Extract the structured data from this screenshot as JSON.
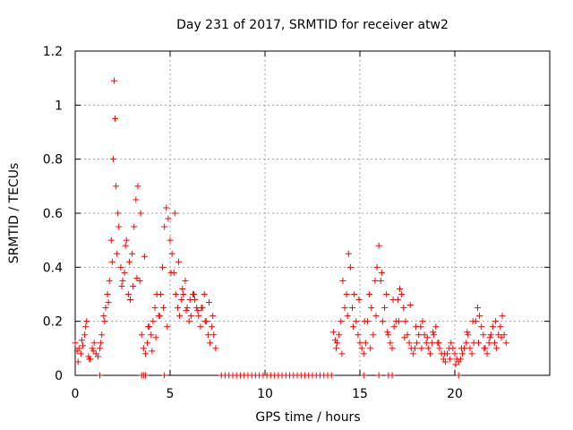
{
  "chart_data": {
    "type": "scatter",
    "title": "Day 231 of 2017, SRMTID for receiver atw2",
    "xlabel": "GPS time / hours",
    "ylabel": "SRMTID / TECUs",
    "xlim": [
      0,
      25
    ],
    "ylim": [
      0,
      1.2
    ],
    "xticks": [
      0,
      5,
      10,
      15,
      20
    ],
    "xtick_labels": [
      "0",
      "5",
      "10",
      "15",
      "20"
    ],
    "yticks": [
      0,
      0.2,
      0.4,
      0.6,
      0.8,
      1,
      1.2
    ],
    "ytick_labels": [
      "0",
      "0.2",
      "0.4",
      "0.6",
      "0.8",
      "1",
      "1.2"
    ],
    "grid": true,
    "marker": "plus",
    "color": "#ff0000",
    "series": [
      {
        "name": "SRMTID",
        "x": [
          0.0,
          0.1,
          0.2,
          0.3,
          0.4,
          0.5,
          0.6,
          0.7,
          0.8,
          0.9,
          1.0,
          1.1,
          1.2,
          1.3,
          1.4,
          1.5,
          1.6,
          1.7,
          1.8,
          1.9,
          2.0,
          2.05,
          2.1,
          2.15,
          2.2,
          2.3,
          2.4,
          2.5,
          2.6,
          2.7,
          2.8,
          2.9,
          3.0,
          3.1,
          3.2,
          3.3,
          3.4,
          3.5,
          3.6,
          3.7,
          3.8,
          3.9,
          4.0,
          4.1,
          4.2,
          4.3,
          4.4,
          4.5,
          4.6,
          4.7,
          4.8,
          4.9,
          5.0,
          5.1,
          5.2,
          5.3,
          5.4,
          5.5,
          5.6,
          5.7,
          5.8,
          5.9,
          6.0,
          6.1,
          6.2,
          6.3,
          6.4,
          6.5,
          6.6,
          6.7,
          6.8,
          6.9,
          7.0,
          7.1,
          7.2,
          7.3,
          7.4,
          0.15,
          0.35,
          0.55,
          0.75,
          0.95,
          1.35,
          1.55,
          1.75,
          1.95,
          2.25,
          2.45,
          2.65,
          2.85,
          3.05,
          3.25,
          3.45,
          3.65,
          3.85,
          4.05,
          4.25,
          4.45,
          4.65,
          4.85,
          5.05,
          5.25,
          5.45,
          5.65,
          5.85,
          6.05,
          6.25,
          6.45,
          6.65,
          6.85,
          7.05,
          7.25,
          13.6,
          13.7,
          13.8,
          13.9,
          14.0,
          14.1,
          14.2,
          14.3,
          14.4,
          14.5,
          14.6,
          14.7,
          14.8,
          14.9,
          15.0,
          15.1,
          15.2,
          15.3,
          15.4,
          15.5,
          15.6,
          15.7,
          15.8,
          15.9,
          16.0,
          16.1,
          16.2,
          16.3,
          16.4,
          16.5,
          16.6,
          16.7,
          16.8,
          16.9,
          17.0,
          17.1,
          17.2,
          17.3,
          17.4,
          17.5,
          17.6,
          17.7,
          17.8,
          17.9,
          18.0,
          18.1,
          18.2,
          18.3,
          18.4,
          18.5,
          18.6,
          18.7,
          18.8,
          18.9,
          19.0,
          19.1,
          19.2,
          19.3,
          19.4,
          19.5,
          19.6,
          19.7,
          19.8,
          19.9,
          20.0,
          20.1,
          20.2,
          20.3,
          20.4,
          20.5,
          20.6,
          20.7,
          20.8,
          20.9,
          21.0,
          21.1,
          21.2,
          21.3,
          21.4,
          21.5,
          21.6,
          21.7,
          21.8,
          21.9,
          22.0,
          22.1,
          22.2,
          22.3,
          22.4,
          22.5,
          22.6,
          22.7,
          13.75,
          14.05,
          14.35,
          14.65,
          14.95,
          15.25,
          15.55,
          15.85,
          16.15,
          16.45,
          16.75,
          17.05,
          17.35,
          17.65,
          17.95,
          18.25,
          18.55,
          18.85,
          19.15,
          19.45,
          19.75,
          20.05,
          20.35,
          20.65,
          20.95,
          21.25,
          21.55,
          21.85,
          22.15,
          22.45,
          1.3,
          3.5,
          3.6,
          3.7,
          4.7,
          7.7,
          7.9,
          8.1,
          8.3,
          8.5,
          8.7,
          8.9,
          9.1,
          9.3,
          9.5,
          9.7,
          9.9,
          10.1,
          10.3,
          10.5,
          10.7,
          10.9,
          11.1,
          11.3,
          11.5,
          11.7,
          11.9,
          12.1,
          12.3,
          12.5,
          12.7,
          12.9,
          13.1,
          13.3,
          13.5,
          15.2,
          16.0,
          16.5,
          16.7,
          20.2
        ],
        "y": [
          0.12,
          0.09,
          0.1,
          0.08,
          0.11,
          0.15,
          0.2,
          0.07,
          0.06,
          0.1,
          0.12,
          0.08,
          0.07,
          0.1,
          0.15,
          0.22,
          0.25,
          0.3,
          0.35,
          0.5,
          0.8,
          1.09,
          0.95,
          0.7,
          0.45,
          0.55,
          0.4,
          0.35,
          0.38,
          0.5,
          0.3,
          0.28,
          0.45,
          0.55,
          0.65,
          0.7,
          0.35,
          0.15,
          0.1,
          0.08,
          0.12,
          0.18,
          0.15,
          0.2,
          0.25,
          0.3,
          0.22,
          0.3,
          0.4,
          0.55,
          0.62,
          0.58,
          0.5,
          0.45,
          0.38,
          0.3,
          0.25,
          0.22,
          0.28,
          0.3,
          0.35,
          0.25,
          0.2,
          0.22,
          0.3,
          0.28,
          0.25,
          0.22,
          0.18,
          0.25,
          0.3,
          0.2,
          0.15,
          0.12,
          0.18,
          0.15,
          0.1,
          0.05,
          0.13,
          0.18,
          0.06,
          0.09,
          0.12,
          0.2,
          0.27,
          0.42,
          0.6,
          0.33,
          0.48,
          0.42,
          0.33,
          0.36,
          0.6,
          0.44,
          0.18,
          0.09,
          0.14,
          0.22,
          0.25,
          0.18,
          0.38,
          0.6,
          0.42,
          0.32,
          0.24,
          0.28,
          0.3,
          0.24,
          0.25,
          0.2,
          0.27,
          0.22,
          0.16,
          0.13,
          0.12,
          0.15,
          0.2,
          0.35,
          0.25,
          0.3,
          0.45,
          0.4,
          0.25,
          0.3,
          0.2,
          0.15,
          0.12,
          0.1,
          0.08,
          0.12,
          0.2,
          0.3,
          0.25,
          0.15,
          0.35,
          0.4,
          0.48,
          0.35,
          0.2,
          0.25,
          0.3,
          0.15,
          0.12,
          0.1,
          0.18,
          0.2,
          0.28,
          0.32,
          0.3,
          0.25,
          0.2,
          0.15,
          0.12,
          0.1,
          0.08,
          0.1,
          0.12,
          0.15,
          0.18,
          0.2,
          0.15,
          0.12,
          0.1,
          0.08,
          0.12,
          0.15,
          0.18,
          0.12,
          0.1,
          0.08,
          0.06,
          0.05,
          0.08,
          0.1,
          0.12,
          0.1,
          0.08,
          0.06,
          0.05,
          0.06,
          0.08,
          0.1,
          0.12,
          0.15,
          0.1,
          0.08,
          0.12,
          0.2,
          0.25,
          0.22,
          0.18,
          0.15,
          0.1,
          0.08,
          0.12,
          0.15,
          0.18,
          0.12,
          0.1,
          0.15,
          0.18,
          0.22,
          0.15,
          0.12,
          0.1,
          0.08,
          0.22,
          0.18,
          0.28,
          0.2,
          0.1,
          0.22,
          0.38,
          0.16,
          0.28,
          0.2,
          0.14,
          0.26,
          0.18,
          0.1,
          0.14,
          0.16,
          0.12,
          0.08,
          0.06,
          0.04,
          0.1,
          0.16,
          0.2,
          0.12,
          0.1,
          0.14,
          0.2,
          0.14,
          0,
          0,
          0,
          0,
          0,
          0,
          0,
          0,
          0,
          0,
          0,
          0,
          0,
          0,
          0,
          0,
          0,
          0,
          0,
          0,
          0,
          0,
          0,
          0,
          0,
          0,
          0,
          0,
          0,
          0,
          0,
          0,
          0,
          0,
          0,
          0,
          0,
          0,
          0,
          0
        ]
      }
    ]
  }
}
